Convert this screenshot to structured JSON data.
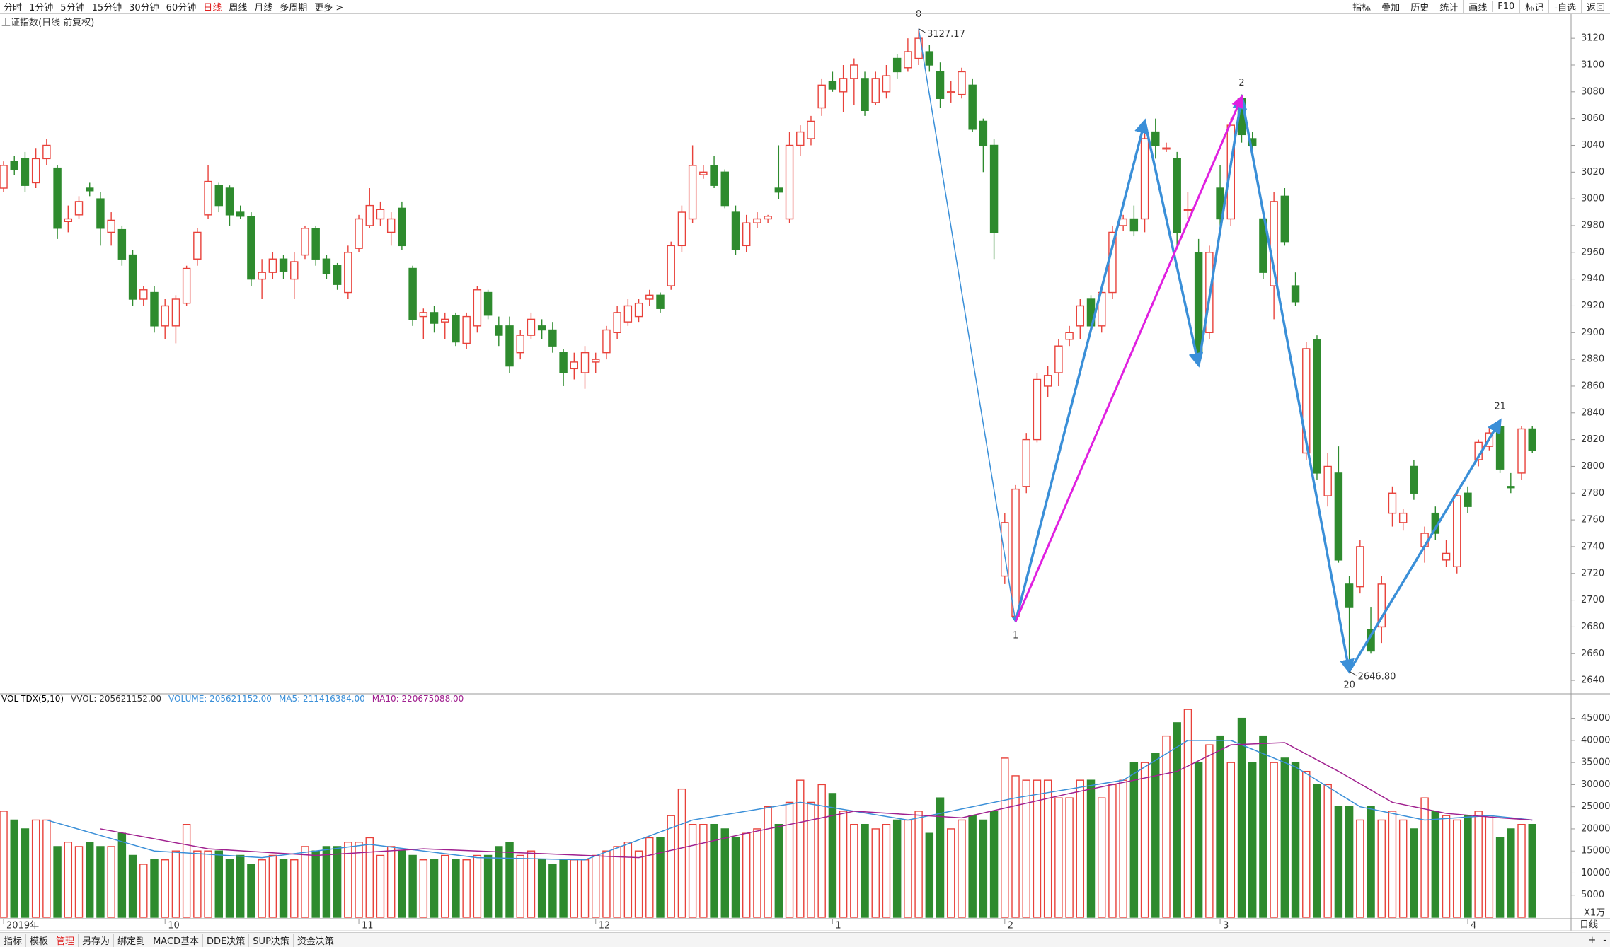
{
  "chart_data": {
    "type": "candlestick",
    "title": "上证指数(日线 前复权)",
    "toolbar": {
      "left": [
        {
          "label": "分时"
        },
        {
          "label": "1分钟"
        },
        {
          "label": "5分钟"
        },
        {
          "label": "15分钟"
        },
        {
          "label": "30分钟"
        },
        {
          "label": "60分钟"
        },
        {
          "label": "日线",
          "active": true
        },
        {
          "label": "周线"
        },
        {
          "label": "月线"
        },
        {
          "label": "多周期"
        },
        {
          "label": "更多 >"
        }
      ],
      "right": [
        {
          "label": "指标"
        },
        {
          "label": "叠加"
        },
        {
          "label": "历史"
        },
        {
          "label": "统计"
        },
        {
          "label": "画线"
        },
        {
          "label": "F10"
        },
        {
          "label": "标记"
        },
        {
          "label": "-自选"
        },
        {
          "label": "返回"
        }
      ]
    },
    "up_color": "#e8413a",
    "down_color": "#2e8b2e",
    "xlim": [
      -0.33,
      145.6
    ],
    "xticks": [
      {
        "value": 0,
        "label": "2019年"
      },
      {
        "value": 15,
        "label": "10"
      },
      {
        "value": 33,
        "label": "11"
      },
      {
        "value": 55,
        "label": "12"
      },
      {
        "value": 77,
        "label": "1"
      },
      {
        "value": 93,
        "label": "2"
      },
      {
        "value": 113,
        "label": "3"
      },
      {
        "value": 136,
        "label": "4"
      }
    ],
    "ylim": [
      2630,
      3137
    ],
    "yticks": [
      2640,
      2660,
      2680,
      2700,
      2720,
      2740,
      2760,
      2780,
      2800,
      2820,
      2840,
      2860,
      2880,
      2900,
      2920,
      2940,
      2960,
      2980,
      3000,
      3020,
      3040,
      3060,
      3080,
      3100,
      3120
    ],
    "ohlc": [
      [
        3008,
        3028,
        3005,
        3025
      ],
      [
        3028,
        3032,
        3018,
        3022
      ],
      [
        3030,
        3035,
        3005,
        3010
      ],
      [
        3012,
        3038,
        3008,
        3030
      ],
      [
        3030,
        3045,
        3025,
        3040
      ],
      [
        3023,
        3025,
        2970,
        2978
      ],
      [
        2983,
        2995,
        2975,
        2985
      ],
      [
        2988,
        3002,
        2985,
        2998
      ],
      [
        3008,
        3012,
        3002,
        3006
      ],
      [
        3000,
        3005,
        2965,
        2978
      ],
      [
        2975,
        2990,
        2965,
        2984
      ],
      [
        2977,
        2980,
        2950,
        2955
      ],
      [
        2958,
        2962,
        2920,
        2925
      ],
      [
        2925,
        2935,
        2920,
        2932
      ],
      [
        2930,
        2935,
        2900,
        2905
      ],
      [
        2905,
        2925,
        2895,
        2920
      ],
      [
        2905,
        2928,
        2892,
        2925
      ],
      [
        2922,
        2950,
        2920,
        2948
      ],
      [
        2955,
        2978,
        2950,
        2975
      ],
      [
        2988,
        3025,
        2985,
        3013
      ],
      [
        3010,
        3012,
        2990,
        2995
      ],
      [
        3008,
        3010,
        2980,
        2988
      ],
      [
        2990,
        2995,
        2985,
        2987
      ],
      [
        2987,
        2990,
        2935,
        2940
      ],
      [
        2940,
        2955,
        2925,
        2945
      ],
      [
        2945,
        2960,
        2940,
        2955
      ],
      [
        2955,
        2958,
        2940,
        2946
      ],
      [
        2940,
        2960,
        2925,
        2953
      ],
      [
        2958,
        2980,
        2955,
        2978
      ],
      [
        2978,
        2980,
        2950,
        2955
      ],
      [
        2955,
        2958,
        2940,
        2944
      ],
      [
        2950,
        2952,
        2932,
        2936
      ],
      [
        2930,
        2965,
        2925,
        2960
      ],
      [
        2963,
        2988,
        2960,
        2985
      ],
      [
        2980,
        3008,
        2978,
        2995
      ],
      [
        2985,
        2998,
        2980,
        2992
      ],
      [
        2975,
        2990,
        2965,
        2985
      ],
      [
        2993,
        2998,
        2962,
        2965
      ],
      [
        2948,
        2950,
        2905,
        2910
      ],
      [
        2912,
        2918,
        2895,
        2915
      ],
      [
        2915,
        2920,
        2900,
        2907
      ],
      [
        2908,
        2915,
        2895,
        2910
      ],
      [
        2913,
        2915,
        2890,
        2893
      ],
      [
        2892,
        2915,
        2888,
        2912
      ],
      [
        2905,
        2935,
        2900,
        2932
      ],
      [
        2930,
        2932,
        2910,
        2913
      ],
      [
        2905,
        2912,
        2890,
        2898
      ],
      [
        2905,
        2912,
        2870,
        2875
      ],
      [
        2885,
        2902,
        2880,
        2898
      ],
      [
        2898,
        2915,
        2895,
        2910
      ],
      [
        2905,
        2910,
        2895,
        2902
      ],
      [
        2902,
        2908,
        2885,
        2890
      ],
      [
        2885,
        2888,
        2860,
        2870
      ],
      [
        2873,
        2885,
        2865,
        2878
      ],
      [
        2870,
        2890,
        2858,
        2885
      ],
      [
        2878,
        2885,
        2870,
        2880
      ],
      [
        2885,
        2905,
        2880,
        2902
      ],
      [
        2900,
        2920,
        2895,
        2915
      ],
      [
        2908,
        2925,
        2905,
        2920
      ],
      [
        2912,
        2925,
        2908,
        2922
      ],
      [
        2925,
        2932,
        2920,
        2928
      ],
      [
        2928,
        2930,
        2915,
        2918
      ],
      [
        2935,
        2968,
        2932,
        2965
      ],
      [
        2965,
        2995,
        2960,
        2990
      ],
      [
        2985,
        3040,
        2982,
        3025
      ],
      [
        3018,
        3025,
        3015,
        3020
      ],
      [
        3025,
        3032,
        3008,
        3010
      ],
      [
        3020,
        3022,
        2993,
        2995
      ],
      [
        2990,
        2995,
        2958,
        2962
      ],
      [
        2965,
        2988,
        2960,
        2982
      ],
      [
        2982,
        2990,
        2978,
        2985
      ],
      [
        2985,
        2988,
        2982,
        2987
      ],
      [
        3008,
        3040,
        3000,
        3005
      ],
      [
        2985,
        3050,
        2982,
        3040
      ],
      [
        3040,
        3055,
        3032,
        3050
      ],
      [
        3045,
        3062,
        3040,
        3058
      ],
      [
        3068,
        3090,
        3062,
        3085
      ],
      [
        3088,
        3095,
        3080,
        3082
      ],
      [
        3080,
        3100,
        3065,
        3090
      ],
      [
        3090,
        3105,
        3070,
        3100
      ],
      [
        3090,
        3095,
        3062,
        3066
      ],
      [
        3072,
        3095,
        3070,
        3090
      ],
      [
        3080,
        3100,
        3075,
        3092
      ],
      [
        3105,
        3108,
        3090,
        3095
      ],
      [
        3098,
        3120,
        3095,
        3110
      ],
      [
        3105,
        3127.17,
        3100,
        3120
      ],
      [
        3110,
        3115,
        3095,
        3100
      ],
      [
        3095,
        3102,
        3068,
        3075
      ],
      [
        3080,
        3088,
        3072,
        3080
      ],
      [
        3078,
        3098,
        3075,
        3095
      ],
      [
        3085,
        3090,
        3050,
        3052
      ],
      [
        3058,
        3060,
        3020,
        3040
      ],
      [
        3040,
        3045,
        2955,
        2975
      ],
      [
        2718,
        2765,
        2712,
        2758
      ],
      [
        2688,
        2786,
        2684,
        2783
      ],
      [
        2785,
        2825,
        2780,
        2820
      ],
      [
        2820,
        2870,
        2818,
        2865
      ],
      [
        2860,
        2875,
        2852,
        2868
      ],
      [
        2870,
        2895,
        2860,
        2890
      ],
      [
        2895,
        2905,
        2890,
        2900
      ],
      [
        2905,
        2925,
        2895,
        2920
      ],
      [
        2925,
        2928,
        2900,
        2905
      ],
      [
        2905,
        2935,
        2900,
        2930
      ],
      [
        2930,
        2980,
        2925,
        2975
      ],
      [
        2980,
        2988,
        2976,
        2985
      ],
      [
        2985,
        2995,
        2972,
        2976
      ],
      [
        2985,
        3058,
        2975,
        3045
      ],
      [
        3050,
        3060,
        3030,
        3040
      ],
      [
        3038,
        3042,
        3035,
        3038
      ],
      [
        3030,
        3035,
        2965,
        2975
      ],
      [
        2992,
        3005,
        2985,
        2992
      ],
      [
        2960,
        2970,
        2875,
        2885
      ],
      [
        2900,
        2965,
        2895,
        2960
      ],
      [
        3008,
        3025,
        2980,
        2985
      ],
      [
        2985,
        3060,
        2980,
        3055
      ],
      [
        3075,
        3078,
        3042,
        3048
      ],
      [
        3045,
        3050,
        3030,
        3040
      ],
      [
        2985,
        2990,
        2940,
        2945
      ],
      [
        2935,
        3005,
        2910,
        2998
      ],
      [
        3002,
        3008,
        2965,
        2968
      ],
      [
        2935,
        2945,
        2920,
        2923
      ],
      [
        2810,
        2893,
        2805,
        2888
      ],
      [
        2895,
        2898,
        2790,
        2795
      ],
      [
        2778,
        2810,
        2770,
        2800
      ],
      [
        2795,
        2815,
        2728,
        2730
      ],
      [
        2712,
        2718,
        2646.8,
        2695
      ],
      [
        2710,
        2745,
        2705,
        2740
      ],
      [
        2678,
        2695,
        2660,
        2662
      ],
      [
        2680,
        2718,
        2668,
        2712
      ],
      [
        2765,
        2785,
        2755,
        2780
      ],
      [
        2758,
        2768,
        2752,
        2765
      ],
      [
        2800,
        2805,
        2775,
        2780
      ],
      [
        2740,
        2755,
        2728,
        2750
      ],
      [
        2765,
        2770,
        2745,
        2750
      ],
      [
        2730,
        2745,
        2725,
        2735
      ],
      [
        2725,
        2780,
        2720,
        2778
      ],
      [
        2780,
        2785,
        2765,
        2770
      ],
      [
        2805,
        2820,
        2800,
        2818
      ],
      [
        2815,
        2830,
        2812,
        2825
      ],
      [
        2830,
        2835,
        2795,
        2798
      ],
      [
        2785,
        2795,
        2780,
        2784
      ],
      [
        2795,
        2830,
        2790,
        2828
      ],
      [
        2828,
        2830,
        2810,
        2812
      ]
    ],
    "zigzag": {
      "color": "#3a8fd8",
      "points": [
        {
          "x": 85,
          "y": 3127.17,
          "label": "0"
        },
        {
          "x": 94,
          "y": 2684,
          "label": "1"
        },
        {
          "x": 106,
          "y": 3058
        },
        {
          "x": 111,
          "y": 2876
        },
        {
          "x": 115,
          "y": 3076,
          "label": "2"
        },
        {
          "x": 125,
          "y": 2646.8,
          "label": "20"
        },
        {
          "x": 139,
          "y": 2834,
          "label": "21"
        }
      ]
    },
    "connector": {
      "color": "#e020e0",
      "points": [
        {
          "x": 94,
          "y": 2684
        },
        {
          "x": 115,
          "y": 3076
        }
      ]
    },
    "price_labels": [
      {
        "x": 85,
        "value": 3127.17,
        "label": "3127.17"
      },
      {
        "x": 125,
        "value": 2646.8,
        "label": "2646.80"
      }
    ],
    "volume_panel": {
      "indicator": "VOL-TDX(5,10)",
      "readouts": [
        {
          "label": "VVOL: 205621152.00",
          "color": "#333333"
        },
        {
          "label": "VOLUME: 205621152.00",
          "color": "#3a8fd8"
        },
        {
          "label": "MA5: 211416384.00",
          "color": "#3a8fd8"
        },
        {
          "label": "MA10: 220675088.00",
          "color": "#a0208f"
        }
      ],
      "unit_label": "X1万",
      "ylim": [
        0,
        47500
      ],
      "yticks": [
        5000,
        10000,
        15000,
        20000,
        25000,
        30000,
        35000,
        40000,
        45000
      ],
      "values": [
        24000,
        22000,
        20000,
        22000,
        22000,
        16000,
        17000,
        16000,
        17000,
        16000,
        16000,
        19000,
        14000,
        12000,
        13000,
        13000,
        15000,
        21000,
        15000,
        15000,
        15000,
        13000,
        14000,
        12000,
        13000,
        14000,
        13000,
        13000,
        16000,
        15000,
        16000,
        16000,
        17000,
        17000,
        18000,
        14000,
        16000,
        15000,
        14000,
        13000,
        13000,
        14000,
        13000,
        13000,
        14000,
        14000,
        16000,
        17000,
        14000,
        15000,
        13000,
        12000,
        13000,
        13000,
        13000,
        14000,
        15000,
        16000,
        17000,
        15000,
        18000,
        18000,
        23000,
        29000,
        21000,
        21000,
        21000,
        20000,
        18000,
        19000,
        20000,
        25000,
        21000,
        26000,
        31000,
        26000,
        30000,
        28000,
        24000,
        21000,
        21000,
        20000,
        21000,
        22000,
        22000,
        24000,
        19000,
        27000,
        20000,
        22000,
        23000,
        22000,
        24000,
        36000,
        32000,
        31000,
        31000,
        31000,
        27000,
        27000,
        31000,
        31000,
        27000,
        30000,
        31000,
        35000,
        35000,
        37000,
        41000,
        44000,
        47000,
        35000,
        39000,
        41000,
        35000,
        45000,
        35000,
        41000,
        35000,
        36000,
        35000,
        33000,
        30000,
        30000,
        25000,
        25000,
        22000,
        25000,
        22000,
        24000,
        22000,
        20000,
        27000,
        24000,
        23000,
        22000,
        23000,
        24000,
        23000,
        18000,
        20000,
        21000,
        21000
      ],
      "lines": [
        {
          "color": "#3a8fd8",
          "x": [
            4,
            14,
            24,
            34,
            44,
            54,
            64,
            74,
            84,
            94,
            104,
            110,
            114,
            120,
            126,
            132,
            138,
            142
          ],
          "values": [
            22000,
            15000,
            13500,
            16500,
            13500,
            13000,
            22000,
            26000,
            22000,
            27000,
            31000,
            40000,
            40000,
            34000,
            25000,
            22000,
            23000,
            22000
          ]
        },
        {
          "color": "#a0208f",
          "x": [
            9,
            19,
            29,
            39,
            49,
            59,
            69,
            79,
            89,
            99,
            109,
            114,
            119,
            124,
            129,
            134,
            139,
            142
          ],
          "values": [
            20000,
            15500,
            14000,
            15500,
            14500,
            13500,
            19000,
            24000,
            22500,
            28000,
            33000,
            39000,
            39500,
            33000,
            26000,
            23500,
            22500,
            22000
          ]
        }
      ]
    },
    "period_label": "日线",
    "zoom_buttons": [
      "+",
      "-"
    ],
    "tabs": [
      {
        "label": "指标"
      },
      {
        "label": "模板"
      },
      {
        "label": "管理",
        "active": true
      },
      {
        "label": "另存为"
      },
      {
        "label": "绑定到"
      },
      {
        "label": "MACD基本"
      },
      {
        "label": "DDE决策"
      },
      {
        "label": "SUP决策"
      },
      {
        "label": "资金决策"
      }
    ]
  }
}
